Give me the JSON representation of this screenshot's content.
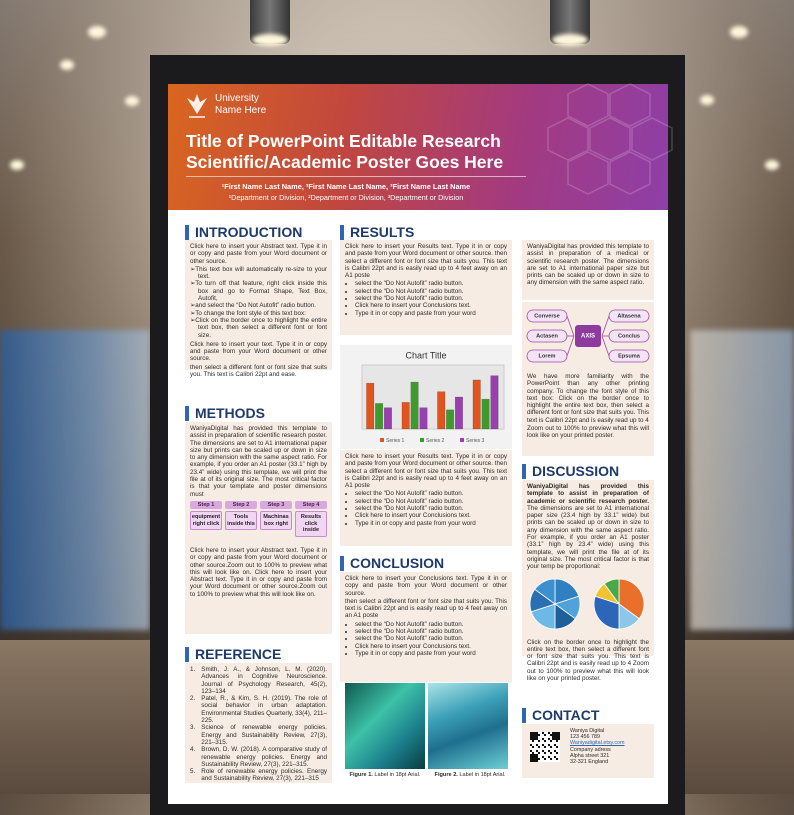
{
  "header": {
    "university_line1": "University",
    "university_line2": "Name Here",
    "title_line1": "Title of PowerPoint Editable Research",
    "title_line2": "Scientific/Academic Poster Goes Here",
    "authors": "¹First Name Last Name, ²First Name Last Name, ³First Name Last Name",
    "departments": "¹Department or Division, ²Department or Division, ³Department or Division"
  },
  "introduction": {
    "heading": "INTRODUCTION",
    "blocks": [
      {
        "text": "Click here to insert your Abstract text. Type it in or copy and paste from your Word document or other source."
      },
      {
        "arrows": [
          "This text box will automatically re-size to your text.",
          "To turn off that feature, right click inside this box and go to Format Shape, Text Box, Autofit,",
          "and select the “Do Not Autofit” radio button.",
          "To change the font style of this text box:",
          "Click on the border once to highlight the entire text box, then select a different font or font size."
        ]
      },
      {
        "text": "Click here to insert your text. Type it in or copy and paste from your Word document or other source."
      },
      {
        "text": "then select a different font or font size that suits you. This text is Calibri 22pt and ease."
      }
    ]
  },
  "methods": {
    "heading": "METHODS",
    "blocks": [
      {
        "text": "WaniyaDigital has provided this template to assist in preparation of scientific research poster. The dimensions are set to A1 international paper size but prints can be scaled up or down in size to any dimension with the same aspect ratio. For example, if you order an A1 poster (33.1” high by 23.4” wide) using this template, we will print the file at of its original size. The most critical factor is that your template and poster dimensions must"
      }
    ],
    "steps": [
      {
        "step": "Step 1",
        "text": "equipment right click"
      },
      {
        "step": "Step 2",
        "text": "Tools inside this"
      },
      {
        "step": "Step 3",
        "text": "Machinas box right"
      },
      {
        "step": "Step 4",
        "text": "Results click inside"
      }
    ],
    "after": [
      {
        "text": "Click here to insert your Abstract text. Type it in or copy and paste from your Word document or other source.Zoom out to 100% to preview what this will look like on. Click here to insert your Abstract text. Type it in or copy and paste from your Word document or other source.Zoom out to 100% to preview what this will look like on."
      }
    ]
  },
  "reference": {
    "heading": "REFERENCE",
    "items": [
      {
        "n": "1.",
        "text": "Smith, J. A., & Johnson, L. M. (2020). Advances in Cognitive Neuroscience. Journal of Psychology Research, 45(2), 123–134"
      },
      {
        "n": "2.",
        "text": "Patel, R., & Kim, S. H. (2019). The role of social behavior in urban adaptation. Environmental Studies Quarterly, 33(4), 211–225."
      },
      {
        "n": "3.",
        "text": "Science of renewable energy policies. Energy and Sustainability Review, 27(3), 221–315."
      },
      {
        "n": "4.",
        "text": "Brown, D. W. (2018). A comparative study of renewable energy policies. Energy and Sustainability Review, 27(3), 221–315."
      },
      {
        "n": "5.",
        "text": "Role of renewable energy policies. Energy and Sustainability Review, 27(3), 221–315"
      }
    ]
  },
  "results": {
    "heading": "RESULTS",
    "top": [
      {
        "text": "Click here to insert your Results text. Type it in or copy and paste from your Word document or other source. then select a different font or font size that suits you. This text is Calibri 22pt and is easily read up to 4 feet away on an A1 poste"
      },
      {
        "bullets": [
          "select the “Do Not Autofit” radio button.",
          "select the “Do Not Autofit” radio button.",
          "select the “Do Not Autofit” radio button.",
          "Click here to insert your Conclusions text.",
          "Type it in or copy and paste from your word"
        ]
      }
    ],
    "chart": {
      "type": "bar",
      "title": "Chart Title",
      "ylim": [
        0,
        6
      ],
      "series": [
        {
          "name": "Series 1",
          "color": "#e0541f",
          "values": [
            4.3,
            2.5,
            3.5,
            4.6
          ]
        },
        {
          "name": "Series 2",
          "color": "#3f9a2e",
          "values": [
            2.4,
            4.4,
            1.8,
            2.8
          ]
        },
        {
          "name": "Series 3",
          "color": "#9a3fb0",
          "values": [
            2,
            2,
            3,
            5
          ]
        }
      ]
    },
    "bottom": [
      {
        "text": "Click here to insert your Results text. Type it in or copy and paste from your Word document or other source. then select a different font or font size that suits you. This text is Calibri 22pt and is easily read up to 4 feet away on an A1 poste"
      },
      {
        "bullets": [
          "select the “Do Not Autofit” radio button.",
          "select the “Do Not Autofit” radio button.",
          "select the “Do Not Autofit” radio button.",
          "Click here to insert your Conclusions text.",
          "Type it in or copy and paste from your word"
        ]
      }
    ]
  },
  "conclusion": {
    "heading": "CONCLUSION",
    "blocks": [
      {
        "text": "Click here to insert your Conclusions text. Type it in or copy and paste from your Word document or other source."
      },
      {
        "text": "then select a different font or font size that suits you. This text is Calibri 22pt and is easily read up to 4 feet away on an A1 poste"
      },
      {
        "bullets": [
          "select the “Do Not Autofit” radio button.",
          "select the “Do Not Autofit” radio button.",
          "select the “Do Not Autofit” radio button.",
          "Click here to insert your Conclusions text.",
          "Type it in or copy and paste from your word"
        ]
      }
    ],
    "figures": [
      {
        "label": "Figure 1.",
        "text": "Label in 18pt Arial."
      },
      {
        "label": "Figure 2.",
        "text": "Label in 18pt Arial."
      }
    ]
  },
  "side": {
    "top": [
      {
        "text": "WaniyaDigital has provided this template to assist in preparation of a medical or scientific research poster. The dimensions are set to A1 international paper size but prints can be scaled up or down in size to any dimension with the same aspect ratio."
      }
    ],
    "diagram": {
      "center": "AXIS",
      "nodes": [
        "Converse",
        "Altasena",
        "Actasen",
        "Conclus",
        "Lorem",
        "Epsuma"
      ]
    },
    "middle": [
      {
        "text": "We have more familiarity with the PowerPoint than any other printing company. To change the font style of this text box: Click on the border once to highlight the entire text box, then select a different font or font size that suits you. This text is Calibri 22pt and is easily read up to 4"
      },
      {
        "text": "Zoom out to 100% to preview what this will look like on your printed poster."
      }
    ]
  },
  "discussion": {
    "heading": "DISCUSSION",
    "lead": "WaniyaDigital has provided this template to assist in preparation of academic or scientific research poster.",
    "text": "The dimensions are set to A1 international paper size (23.4 high by 33.1” wide) but prints can be scaled up or down in size to any dimension with the same aspect ratio. For example, if you order an A1 poster (33.1” high by 23.4” wide) using this template, we will print the file at of its original size. The most critical factor is that your temp be proportional:",
    "pies": [
      {
        "type": "pie",
        "values": [
          20,
          15,
          15,
          20,
          15,
          15
        ],
        "colors": [
          "#2f7fc1",
          "#4fa3d9",
          "#1f5f9a",
          "#6cb8e6",
          "#2a6fb0",
          "#3d90cf"
        ]
      },
      {
        "type": "pie",
        "values": [
          35,
          15,
          30,
          10,
          10
        ],
        "colors": [
          "#e8702a",
          "#8cc7ea",
          "#2b66b8",
          "#f2c230",
          "#4aa84a"
        ]
      }
    ],
    "after": [
      {
        "text": "Click on the border once to highlight the entire text box, then select a different font or font size that suits you. This text is Calibri 22pt and is easily read up to 4 Zoom out to 100% to preview what this will look like on your printed poster."
      }
    ]
  },
  "contact": {
    "heading": "CONTACT",
    "lines": [
      "Waniya Digital",
      "123 456 789",
      "Waniyadigital.etsy.com",
      "Company adress",
      "Alpha street 321",
      "32-321 England"
    ]
  }
}
